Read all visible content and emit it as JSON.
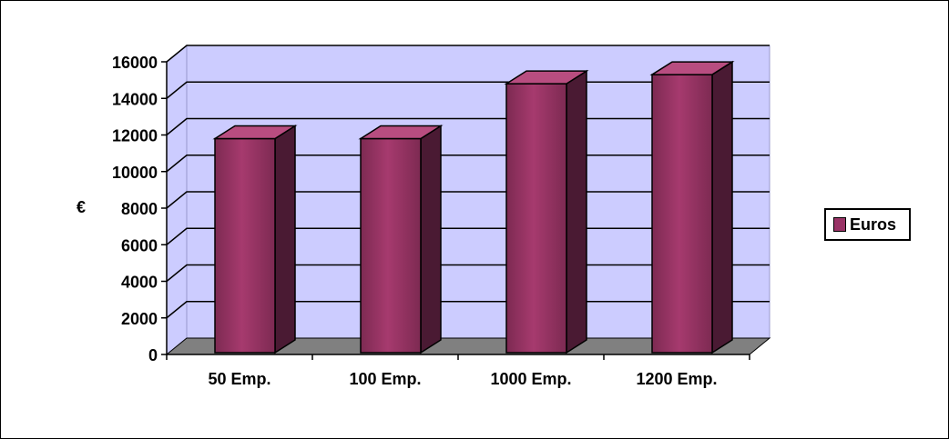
{
  "chart_data": {
    "type": "bar",
    "title": "",
    "xlabel": "",
    "ylabel": "€",
    "categories": [
      "50 Emp.",
      "100 Emp.",
      "1000 Emp.",
      "1200 Emp."
    ],
    "series": [
      {
        "name": "Euros",
        "values": [
          12000,
          12000,
          15000,
          15500
        ]
      }
    ],
    "ylim": [
      0,
      16000
    ],
    "yticks": [
      0,
      2000,
      4000,
      6000,
      8000,
      10000,
      12000,
      14000,
      16000
    ],
    "grid": true,
    "legend_position": "right",
    "colors": {
      "bar_front": "#993366",
      "bar_side": "#4a1a33",
      "bar_top": "#b84d80",
      "wall": "#ccccff",
      "floor": "#808080"
    }
  }
}
